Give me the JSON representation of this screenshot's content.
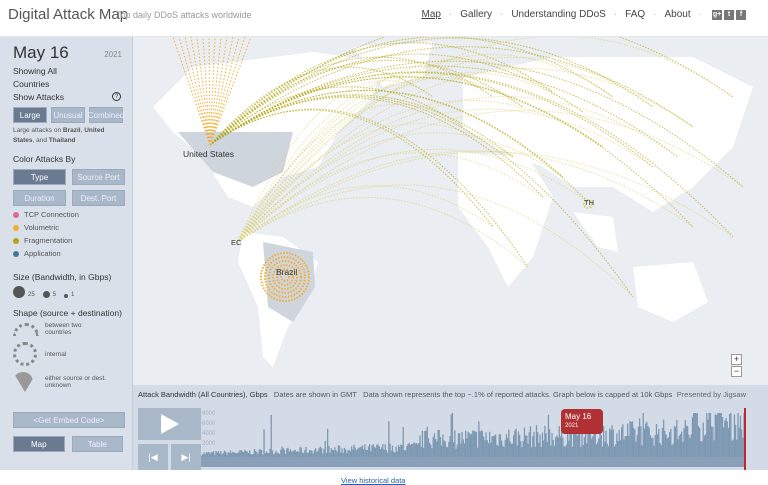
{
  "header": {
    "title": "Digital Attack Map",
    "tagline": "Top daily DDoS attacks worldwide",
    "nav": [
      {
        "label": "Map",
        "active": true
      },
      {
        "label": "Gallery"
      },
      {
        "label": "Understanding DDoS"
      },
      {
        "label": "FAQ"
      },
      {
        "label": "About"
      }
    ],
    "social": [
      {
        "icon": "google-plus-icon",
        "glyph": "g+"
      },
      {
        "icon": "twitter-icon",
        "glyph": "t"
      },
      {
        "icon": "facebook-icon",
        "glyph": "f"
      }
    ]
  },
  "sidebar": {
    "date": "May 16",
    "year": "2021",
    "showing_line1": "Showing All",
    "showing_line2": "Countries",
    "show_attacks": "Show Attacks",
    "help": "?",
    "attack_buttons": [
      {
        "label": "Large",
        "active": true
      },
      {
        "label": "Unusual"
      },
      {
        "label": "Combined"
      }
    ],
    "description_prefix": "Large attacks on ",
    "countries": [
      "Brazil",
      "United States",
      "Thailand"
    ],
    "sep1": ", ",
    "sep2": ", and ",
    "color_by": "Color Attacks By",
    "color_buttons": [
      {
        "label": "Type",
        "active": true
      },
      {
        "label": "Source Port"
      },
      {
        "label": "Duration"
      },
      {
        "label": "Dest. Port"
      }
    ],
    "legend": [
      {
        "label": "TCP Connection",
        "color": "#e06a8e"
      },
      {
        "label": "Volumetric",
        "color": "#f5ad2f"
      },
      {
        "label": "Fragmentation",
        "color": "#b3a514"
      },
      {
        "label": "Application",
        "color": "#4b7398"
      }
    ],
    "size_title": "Size (Bandwidth, in Gbps)",
    "sizes": [
      "25",
      "5",
      "1"
    ],
    "shape_title": "Shape (source + destination)",
    "shapes": [
      {
        "label": "between two countries"
      },
      {
        "label": "internal"
      },
      {
        "label": "either source or dest. unknown"
      }
    ],
    "embed": "<Get Embed Code>",
    "view_buttons": [
      {
        "label": "Map",
        "active": true
      },
      {
        "label": "Table"
      }
    ]
  },
  "map": {
    "labels": {
      "us": "United States",
      "ec": "EC",
      "br": "Brazil",
      "th": "TH"
    },
    "zoom_in": "+",
    "zoom_out": "−"
  },
  "timeline": {
    "caption": "Attack Bandwidth (All Countries), Gbps",
    "gmt": "Dates are shown in GMT",
    "note": "Data shown represents the top ~.1% of reported attacks. Graph below is capped at 10k Gbps",
    "presented": "Presented by Jigsaw",
    "y_ticks": [
      "8000",
      "6000",
      "4000",
      "2000"
    ],
    "current_date": "May 16",
    "current_year": "2021"
  },
  "footer": {
    "historical": "View historical data"
  }
}
